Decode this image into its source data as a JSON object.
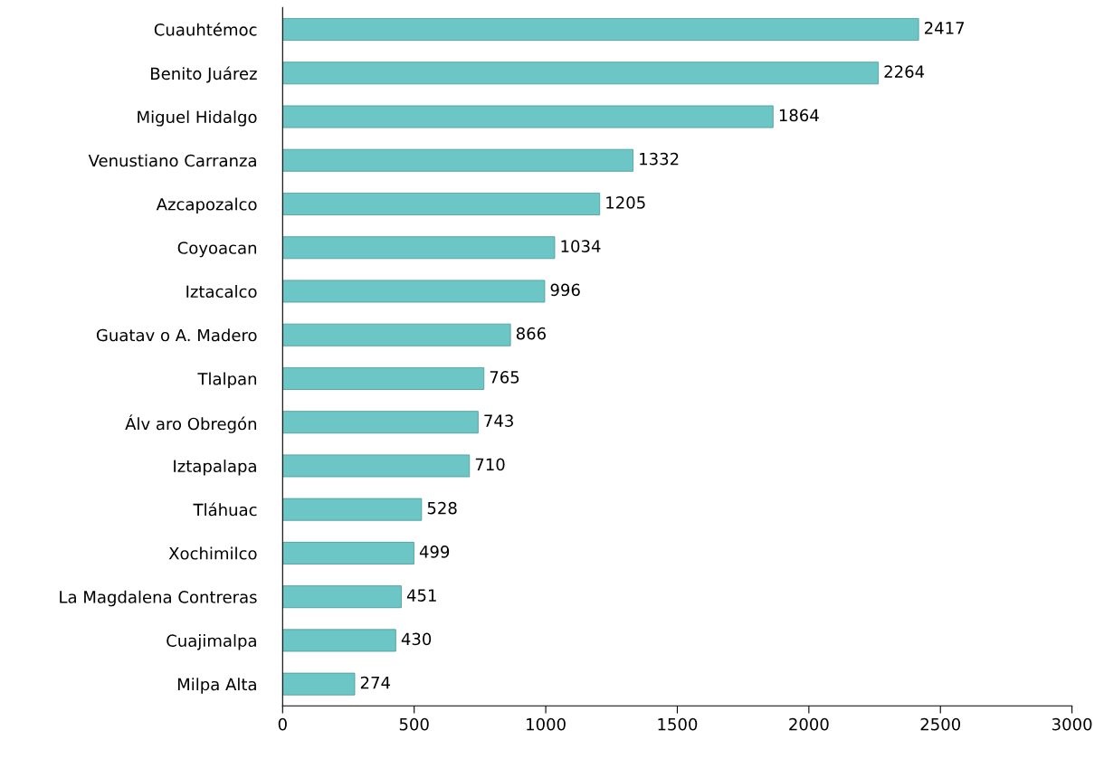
{
  "chart_data": {
    "type": "bar",
    "orientation": "horizontal",
    "categories": [
      "Cuauhtémoc",
      "Benito Juárez",
      "Miguel Hidalgo",
      "Venustiano Carranza",
      "Azcapozalco",
      "Coyoacan",
      "Iztacalco",
      "Guatav o A. Madero",
      "Tlalpan",
      "Álv aro Obregón",
      "Iztapalapa",
      "Tláhuac",
      "Xochimilco",
      "La Magdalena Contreras",
      "Cuajimalpa",
      "Milpa Alta"
    ],
    "values": [
      2417,
      2264,
      1864,
      1332,
      1205,
      1034,
      996,
      866,
      765,
      743,
      710,
      528,
      499,
      451,
      430,
      274
    ],
    "color": "#6cc6c6",
    "xlim": [
      0,
      3000
    ],
    "xticks": [
      0,
      500,
      1000,
      1500,
      2000,
      2500,
      3000
    ],
    "data_labels": true,
    "grid": false,
    "legend": false
  }
}
